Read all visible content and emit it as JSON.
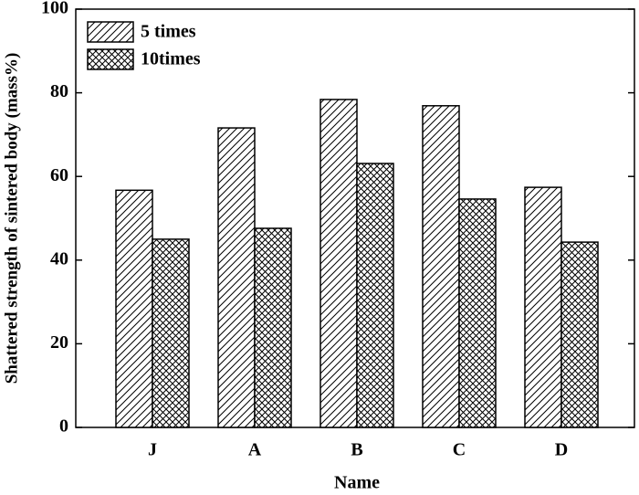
{
  "chart_data": {
    "type": "bar",
    "x_label": "Name",
    "y_label": "Shattered strength of sintered body (mass%)",
    "categories": [
      "J",
      "A",
      "B",
      "C",
      "D"
    ],
    "series": [
      {
        "name": "5 times",
        "color": "#000000",
        "hatch": "diagonal",
        "values": [
          56.7,
          71.6,
          78.4,
          76.9,
          57.4
        ]
      },
      {
        "name": "10times",
        "color": "#000000",
        "hatch": "cross",
        "values": [
          45.0,
          47.6,
          63.1,
          54.6,
          44.3
        ]
      }
    ],
    "ylim": [
      0,
      100
    ],
    "yticks": [
      0,
      20,
      40,
      60,
      80,
      100
    ],
    "legend": "upper left"
  }
}
